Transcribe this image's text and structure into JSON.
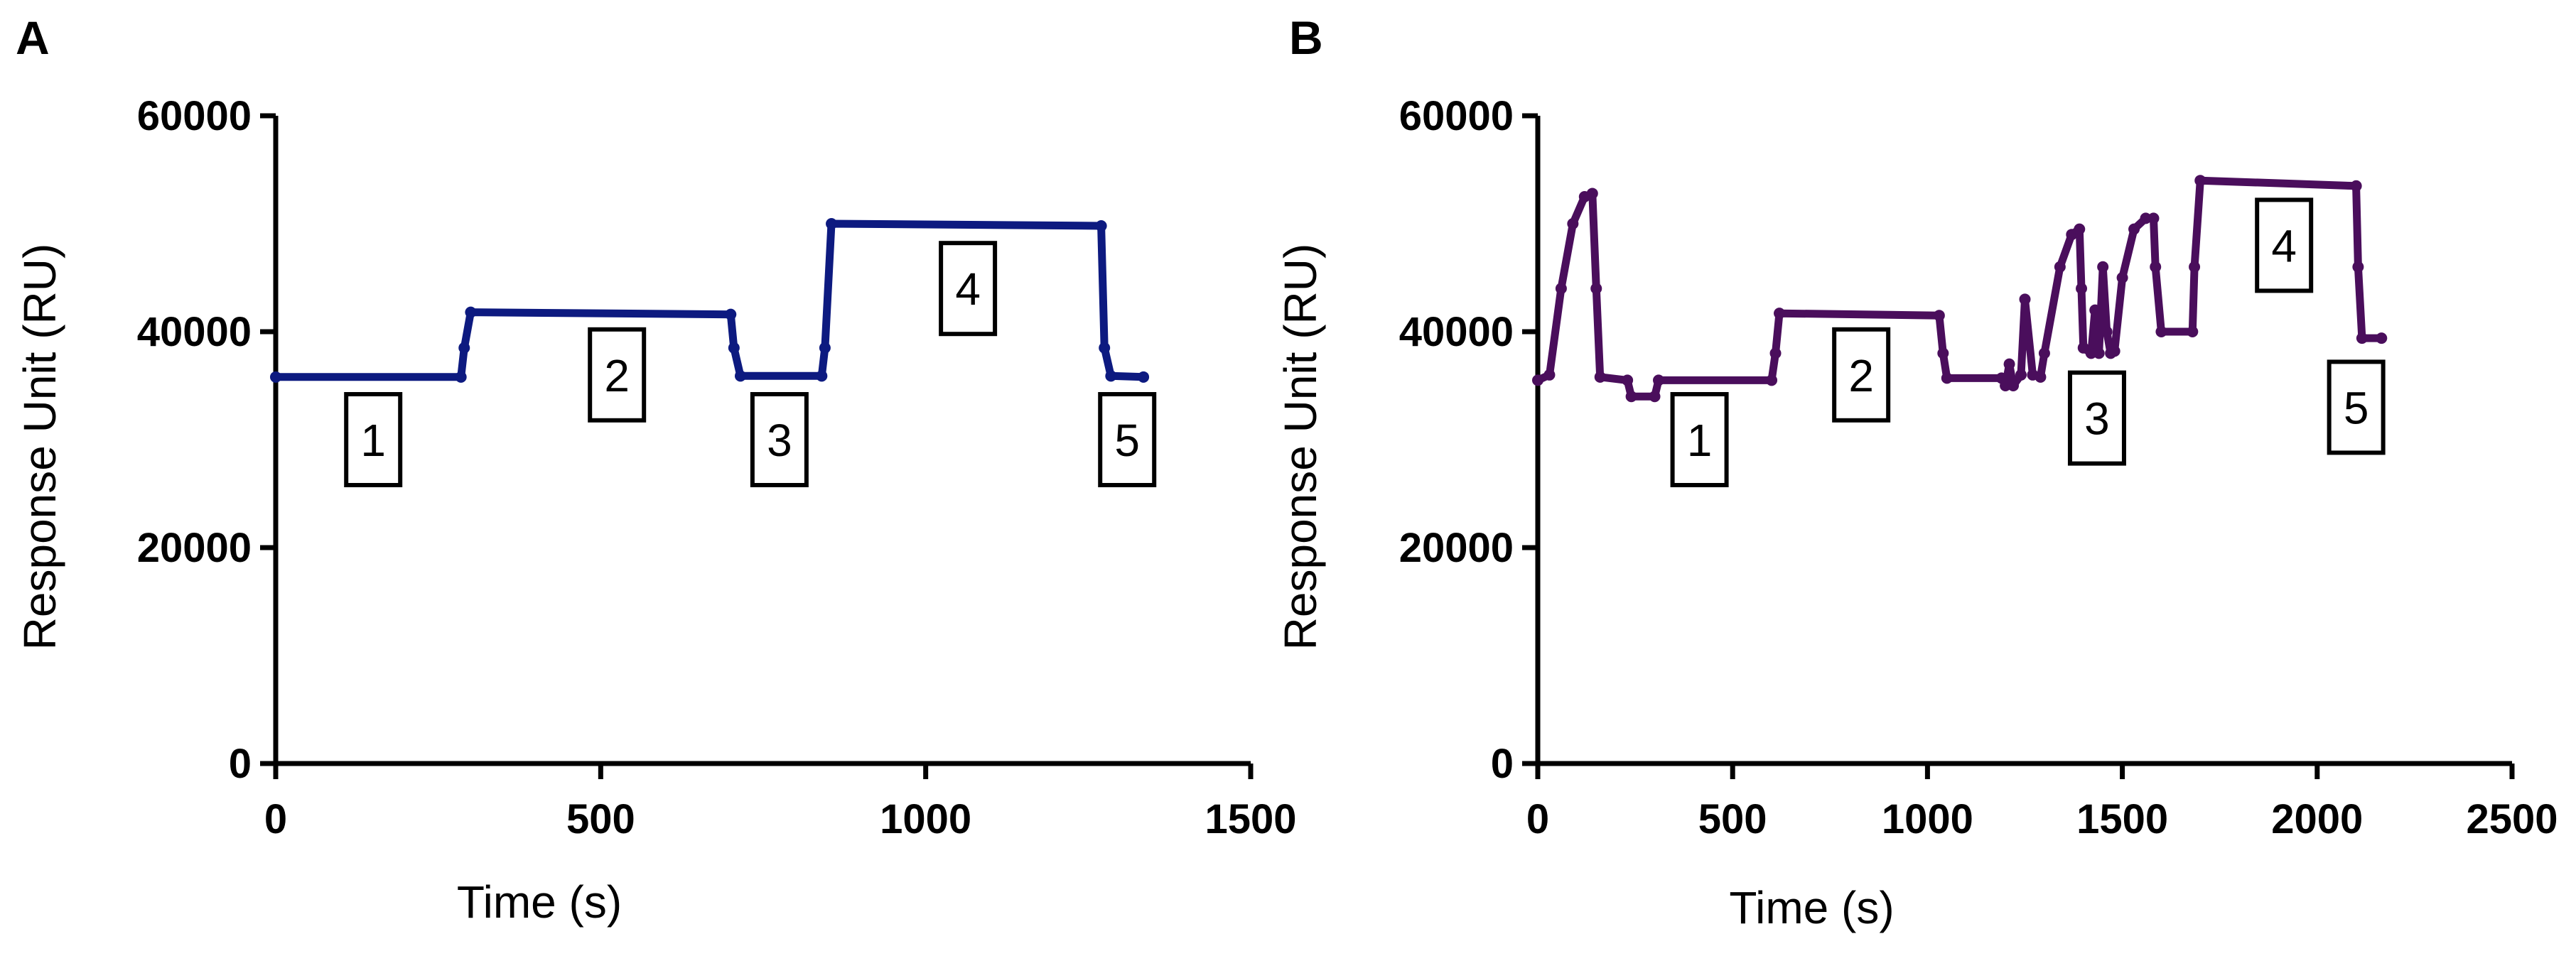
{
  "chart_data": [
    {
      "panel": "A",
      "type": "line",
      "xlabel": "Time (s)",
      "ylabel": "Response Unit (RU)",
      "xlim": [
        0,
        1500
      ],
      "ylim": [
        0,
        60000
      ],
      "xticks": [
        0,
        500,
        1000,
        1500
      ],
      "yticks": [
        0,
        20000,
        40000,
        60000
      ],
      "series": [
        {
          "color": "#0d1a80",
          "x": [
            0,
            285,
            290,
            300,
            700,
            705,
            715,
            840,
            845,
            855,
            1270,
            1275,
            1285,
            1335
          ],
          "y": [
            35800,
            35800,
            38500,
            41800,
            41600,
            38500,
            35900,
            35900,
            38500,
            50000,
            49800,
            38500,
            35900,
            35800
          ]
        }
      ],
      "annotations": [
        {
          "text": "1",
          "x": 150,
          "y": 30000
        },
        {
          "text": "2",
          "x": 525,
          "y": 36000
        },
        {
          "text": "3",
          "x": 775,
          "y": 30000
        },
        {
          "text": "4",
          "x": 1065,
          "y": 44000
        },
        {
          "text": "5",
          "x": 1310,
          "y": 30000
        }
      ]
    },
    {
      "panel": "B",
      "type": "line",
      "xlabel": "Time (s)",
      "ylabel": "Response Unit (RU)",
      "xlim": [
        0,
        2500
      ],
      "ylim": [
        0,
        60000
      ],
      "xticks": [
        0,
        500,
        1000,
        1500,
        2000,
        2500
      ],
      "yticks": [
        0,
        20000,
        40000,
        60000
      ],
      "series": [
        {
          "color": "#4a0e5c",
          "x": [
            0,
            30,
            60,
            90,
            120,
            140,
            150,
            160,
            230,
            240,
            300,
            310,
            600,
            610,
            620,
            1030,
            1040,
            1050,
            1190,
            1200,
            1210,
            1220,
            1240,
            1250,
            1270,
            1290,
            1300,
            1340,
            1370,
            1390,
            1395,
            1400,
            1420,
            1430,
            1440,
            1450,
            1460,
            1470,
            1480,
            1500,
            1530,
            1560,
            1580,
            1585,
            1600,
            1680,
            1685,
            1700,
            2100,
            2105,
            2115,
            2165
          ],
          "y": [
            35500,
            36000,
            44000,
            50000,
            52500,
            52800,
            44000,
            35800,
            35500,
            34000,
            34000,
            35500,
            35500,
            38000,
            41700,
            41500,
            38000,
            35700,
            35700,
            35000,
            37000,
            35000,
            36000,
            43000,
            36000,
            35800,
            38000,
            46000,
            49000,
            49500,
            44000,
            38500,
            38000,
            42000,
            38000,
            46000,
            40000,
            38000,
            38200,
            45000,
            49500,
            50500,
            50500,
            46000,
            40000,
            40000,
            46000,
            54000,
            53500,
            46000,
            39400,
            39400
          ]
        }
      ],
      "annotations": [
        {
          "text": "1",
          "x": 415,
          "y": 30000
        },
        {
          "text": "2",
          "x": 830,
          "y": 36000
        },
        {
          "text": "3",
          "x": 1435,
          "y": 32000
        },
        {
          "text": "4",
          "x": 1915,
          "y": 48000
        },
        {
          "text": "5",
          "x": 2100,
          "y": 33000
        }
      ]
    }
  ]
}
